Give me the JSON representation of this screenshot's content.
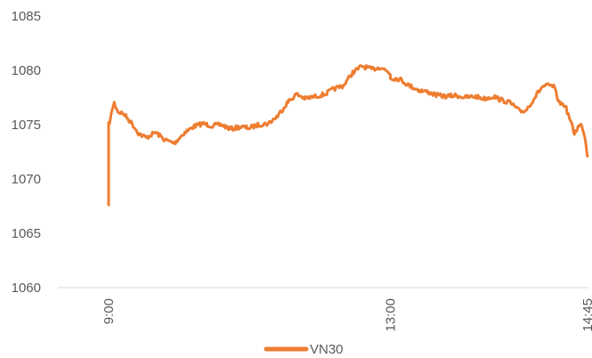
{
  "chart_data": {
    "type": "line",
    "title": "",
    "xlabel": "",
    "ylabel": "",
    "ylim": [
      1060,
      1085
    ],
    "y_ticks": [
      1060,
      1065,
      1070,
      1075,
      1080,
      1085
    ],
    "x_range": [
      "9:00",
      "14:45"
    ],
    "x_ticks": [
      "9:00",
      "13:00",
      "14:45"
    ],
    "grid": false,
    "legend": "bottom",
    "series": [
      {
        "name": "VN30",
        "color": "#ED7D31",
        "points": [
          [
            "9:00",
            1067.5
          ],
          [
            "9:00",
            1075.0
          ],
          [
            "9:01",
            1075.5
          ],
          [
            "9:02",
            1076.5
          ],
          [
            "9:03",
            1077.0
          ],
          [
            "9:05",
            1076.2
          ],
          [
            "9:08",
            1076.0
          ],
          [
            "9:12",
            1075.2
          ],
          [
            "9:16",
            1074.2
          ],
          [
            "9:20",
            1073.8
          ],
          [
            "9:25",
            1074.3
          ],
          [
            "9:30",
            1073.6
          ],
          [
            "9:35",
            1073.3
          ],
          [
            "9:40",
            1074.2
          ],
          [
            "9:45",
            1074.8
          ],
          [
            "9:50",
            1075.1
          ],
          [
            "9:55",
            1074.9
          ],
          [
            "10:00",
            1075.0
          ],
          [
            "10:05",
            1074.6
          ],
          [
            "10:10",
            1074.8
          ],
          [
            "10:15",
            1074.7
          ],
          [
            "10:20",
            1075.0
          ],
          [
            "10:25",
            1075.1
          ],
          [
            "10:30",
            1075.8
          ],
          [
            "10:35",
            1077.0
          ],
          [
            "10:40",
            1077.8
          ],
          [
            "10:45",
            1077.4
          ],
          [
            "10:50",
            1077.6
          ],
          [
            "10:55",
            1077.8
          ],
          [
            "11:00",
            1078.3
          ],
          [
            "11:05",
            1078.6
          ],
          [
            "11:10",
            1079.8
          ],
          [
            "11:15",
            1080.4
          ],
          [
            "11:20",
            1080.1
          ],
          [
            "11:25",
            1080.3
          ],
          [
            "11:30",
            1079.7
          ],
          [
            "13:00",
            1079.3
          ],
          [
            "13:05",
            1079.2
          ],
          [
            "13:10",
            1078.6
          ],
          [
            "13:15",
            1078.2
          ],
          [
            "13:20",
            1078.0
          ],
          [
            "13:25",
            1077.7
          ],
          [
            "13:30",
            1077.6
          ],
          [
            "13:35",
            1077.7
          ],
          [
            "13:40",
            1077.5
          ],
          [
            "13:45",
            1077.6
          ],
          [
            "13:50",
            1077.4
          ],
          [
            "13:55",
            1077.6
          ],
          [
            "14:00",
            1077.2
          ],
          [
            "14:03",
            1077.1
          ],
          [
            "14:06",
            1076.7
          ],
          [
            "14:09",
            1076.2
          ],
          [
            "14:12",
            1076.3
          ],
          [
            "14:15",
            1077.0
          ],
          [
            "14:18",
            1077.8
          ],
          [
            "14:21",
            1078.5
          ],
          [
            "14:24",
            1078.6
          ],
          [
            "14:27",
            1078.5
          ],
          [
            "14:30",
            1077.0
          ],
          [
            "14:33",
            1076.8
          ],
          [
            "14:36",
            1075.3
          ],
          [
            "14:38",
            1074.2
          ],
          [
            "14:40",
            1074.8
          ],
          [
            "14:42",
            1075.0
          ],
          [
            "14:44",
            1073.5
          ],
          [
            "14:45",
            1072.0
          ]
        ]
      }
    ]
  }
}
